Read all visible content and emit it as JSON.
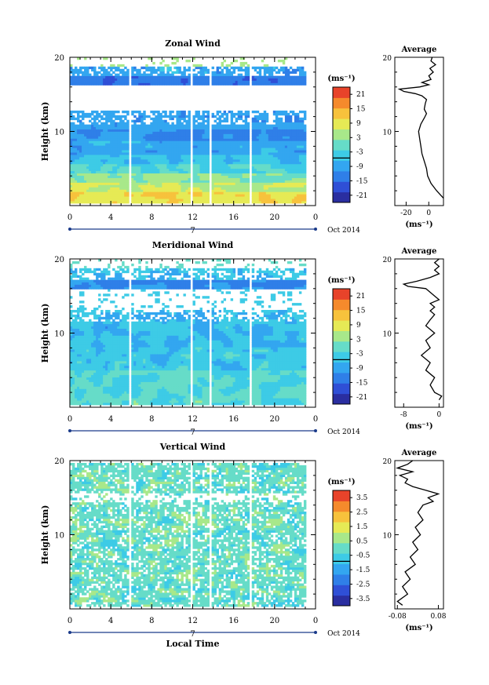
{
  "colors": {
    "scale": [
      "#2a2ea0",
      "#2f4fd6",
      "#2f7fe8",
      "#33a6f0",
      "#3dcbe6",
      "#66dcc8",
      "#a8e88a",
      "#e6ea55",
      "#f7c23c",
      "#f58a2c",
      "#e8432a"
    ],
    "trace": "#000000",
    "frame": "#000000"
  },
  "shared": {
    "x_ticks": [
      "0",
      "4",
      "8",
      "12",
      "16",
      "20",
      "0"
    ],
    "day_label": "7",
    "month_label": "Oct 2014",
    "unit_label": "(ms⁻¹)",
    "y_label": "Height (km)",
    "avg_y_ticks": [
      "20",
      "10"
    ],
    "avg_unit": "(ms⁻¹)"
  },
  "chart_data": [
    {
      "type": "heatmap",
      "title": "Zonal Wind",
      "xlabel": "",
      "ylabel": "Height (km)",
      "x_range": [
        0,
        24
      ],
      "ylim": [
        0,
        20
      ],
      "y_ticks": [
        "20",
        "10"
      ],
      "colorbar": {
        "unit": "(ms⁻¹)",
        "ticks": [
          "21",
          "15",
          "9",
          "3",
          "-3",
          "-9",
          "-15",
          "-21"
        ],
        "range": [
          -24,
          24
        ]
      },
      "data_gaps_hours": [
        5.8,
        11.8,
        13.7,
        17.7
      ],
      "profile": {
        "title": "Average",
        "x_ticks": [
          "-20",
          "0"
        ],
        "xlim": [
          -30,
          13
        ],
        "heights": [
          1.0,
          2.0,
          3.0,
          4.0,
          5.0,
          6.0,
          7.0,
          8.0,
          9.0,
          10.0,
          11.0,
          11.8,
          12.4,
          13.0,
          13.8,
          14.3,
          14.8,
          15.1,
          15.4,
          15.7,
          16.0,
          16.3,
          16.6,
          17.0,
          17.5,
          18.0,
          18.5,
          19.0,
          19.5,
          20.0
        ],
        "values": [
          13,
          7,
          2,
          -1,
          -2,
          -4,
          -6,
          -7,
          -8,
          -9,
          -7,
          -4,
          -2,
          -4,
          -3,
          -2,
          -6,
          -12,
          -22,
          -26,
          -8,
          0,
          -6,
          2,
          0,
          4,
          1,
          6,
          2,
          3
        ]
      }
    },
    {
      "type": "heatmap",
      "title": "Meridional Wind",
      "xlabel": "",
      "ylabel": "Height (km)",
      "x_range": [
        0,
        24
      ],
      "ylim": [
        0,
        20
      ],
      "y_ticks": [
        "20",
        "10"
      ],
      "colorbar": {
        "unit": "(ms⁻¹)",
        "ticks": [
          "21",
          "15",
          "9",
          "3",
          "-3",
          "-9",
          "-15",
          "-21"
        ],
        "range": [
          -24,
          24
        ]
      },
      "data_gaps_hours": [
        5.8,
        11.8,
        13.7,
        17.7
      ],
      "profile": {
        "title": "Average",
        "x_ticks": [
          "-8",
          "0"
        ],
        "xlim": [
          -10,
          1
        ],
        "heights": [
          1.0,
          1.5,
          2.0,
          3.0,
          4.0,
          5.0,
          6.0,
          7.0,
          8.0,
          9.0,
          10.0,
          11.0,
          11.8,
          12.5,
          13.0,
          13.5,
          14.0,
          14.5,
          15.0,
          15.5,
          16.0,
          16.3,
          16.6,
          17.0,
          17.5,
          18.0,
          18.5,
          19.0,
          19.5,
          20.0
        ],
        "values": [
          0,
          0.6,
          -1,
          -2,
          -1,
          -3,
          -2,
          -4,
          -2,
          -3,
          -1,
          -3,
          -2,
          -1,
          -2,
          -1,
          -2,
          0,
          -1,
          -2,
          -3,
          -7,
          -8,
          -5,
          -2,
          0,
          -1,
          0,
          -1,
          0
        ]
      }
    },
    {
      "type": "heatmap",
      "title": "Vertical Wind",
      "xlabel": "Local Time",
      "ylabel": "Height (km)",
      "x_range": [
        0,
        24
      ],
      "ylim": [
        0,
        20
      ],
      "y_ticks": [
        "20",
        "10"
      ],
      "colorbar": {
        "unit": "(ms⁻¹)",
        "ticks": [
          "3.5",
          "2.5",
          "1.5",
          "0.5",
          "-0.5",
          "-1.5",
          "-2.5",
          "-3.5"
        ],
        "range": [
          -4,
          4
        ]
      },
      "data_gaps_hours": [
        5.8,
        11.8,
        13.7,
        17.7
      ],
      "profile": {
        "title": "Average",
        "x_ticks": [
          "-0.08",
          "0.08"
        ],
        "xlim": [
          -0.09,
          0.1
        ],
        "heights": [
          0.5,
          1.0,
          2.0,
          3.0,
          4.0,
          5.0,
          6.0,
          7.0,
          8.0,
          9.0,
          10.0,
          11.0,
          12.0,
          13.0,
          14.0,
          14.5,
          15.0,
          15.5,
          16.0,
          16.5,
          17.0,
          17.5,
          18.0,
          18.5,
          19.0,
          19.5,
          20.0
        ],
        "values": [
          -0.06,
          -0.08,
          -0.04,
          -0.06,
          -0.03,
          -0.05,
          -0.01,
          -0.03,
          0.0,
          -0.02,
          0.01,
          -0.01,
          0.02,
          0.0,
          0.02,
          0.06,
          0.04,
          0.08,
          0.03,
          -0.02,
          -0.05,
          -0.04,
          -0.07,
          -0.02,
          -0.08,
          -0.04,
          -0.02
        ]
      }
    }
  ]
}
